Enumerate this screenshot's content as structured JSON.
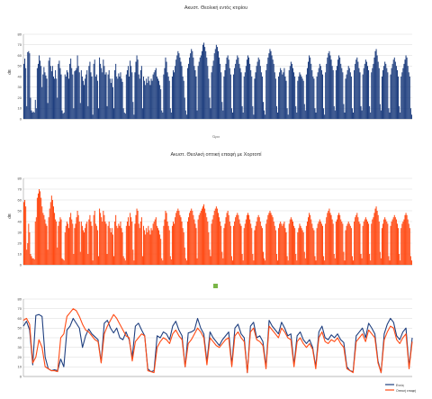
{
  "charts": [
    {
      "title": "Ακυστ. Θεολική εντός κτιρίου",
      "xlabel": "Ώρα",
      "ylabel": "dB",
      "color": "#1f3f7f"
    },
    {
      "title": "Ακυστ. Θεολική οπτική επαφή με Χορτοπί",
      "xlabel": "",
      "ylabel": "dB",
      "color": "#ff4a14"
    },
    {
      "title": "",
      "xlabel": "",
      "ylabel": "",
      "legend": [
        "Εντός",
        "Οπτική επαφή"
      ],
      "colors": [
        "#1f3f7f",
        "#ff4a14"
      ]
    }
  ],
  "chart_data": [
    {
      "type": "bar",
      "title": "Ακυστ. Θεολική εντός κτιρίου",
      "xlabel": "Ώρα",
      "ylabel": "dB",
      "ylim": [
        0,
        80
      ],
      "yticks": [
        0,
        10,
        20,
        30,
        40,
        50,
        60,
        70,
        80
      ],
      "grid": true,
      "color": "#1f3f7f",
      "values": [
        52,
        57,
        48,
        12,
        63,
        64,
        62,
        20,
        8,
        6,
        7,
        6,
        18,
        10,
        48,
        52,
        60,
        55,
        50,
        30,
        42,
        49,
        44,
        41,
        38,
        15,
        55,
        58,
        50,
        45,
        50,
        40,
        38,
        46,
        38,
        20,
        52,
        55,
        48,
        42,
        8,
        5,
        6,
        42,
        40,
        46,
        44,
        38,
        52,
        57,
        48,
        42,
        10,
        45,
        46,
        48,
        60,
        50,
        44,
        15,
        46,
        40,
        36,
        32,
        38,
        42,
        46,
        12,
        50,
        54,
        44,
        40,
        4,
        52,
        56,
        40,
        42,
        36,
        10,
        58,
        52,
        48,
        44,
        56,
        50,
        42,
        44,
        12,
        42,
        46,
        38,
        34,
        38,
        30,
        10,
        46,
        52,
        40,
        38,
        43,
        40,
        44,
        38,
        35,
        10,
        6,
        5,
        42,
        46,
        50,
        40,
        55,
        50,
        44,
        16,
        4,
        44,
        54,
        60,
        56,
        42,
        38,
        46,
        50,
        10,
        40,
        36,
        32,
        38,
        34,
        40,
        36,
        32,
        38,
        36,
        42,
        44,
        46,
        48,
        40,
        38,
        36,
        32,
        28,
        8,
        6,
        42,
        48,
        58,
        54,
        44,
        40,
        36,
        10,
        6,
        40,
        46,
        44,
        50,
        56,
        60,
        64,
        62,
        58,
        54,
        50,
        40,
        36,
        20,
        8,
        4,
        48,
        52,
        58,
        62,
        66,
        64,
        58,
        50,
        46,
        40,
        8,
        50,
        54,
        58,
        60,
        64,
        70,
        72,
        68,
        64,
        58,
        50,
        38,
        20,
        10,
        44,
        50,
        55,
        62,
        66,
        70,
        68,
        64,
        58,
        52,
        44,
        16,
        8,
        40,
        46,
        52,
        58,
        60,
        56,
        48,
        42,
        10,
        6,
        42,
        48,
        52,
        56,
        60,
        58,
        52,
        48,
        44,
        12,
        6,
        40,
        44,
        50,
        56,
        60,
        58,
        52,
        46,
        40,
        12,
        4,
        38,
        44,
        50,
        54,
        58,
        56,
        50,
        44,
        40,
        16,
        8,
        4,
        46,
        52,
        58,
        62,
        66,
        64,
        60,
        56,
        52,
        44,
        38,
        12,
        6,
        40,
        44,
        48,
        46,
        42,
        44,
        48,
        40,
        36,
        10,
        4,
        46,
        50,
        54,
        52,
        48,
        44,
        40,
        12,
        6,
        36,
        40,
        44,
        42,
        40,
        38,
        36,
        14,
        8,
        42,
        48,
        54,
        60,
        58,
        52,
        46,
        40,
        38,
        10,
        6,
        40,
        44,
        48,
        52,
        50,
        46,
        42,
        10,
        4,
        44,
        52,
        58,
        62,
        64,
        60,
        56,
        50,
        46,
        12,
        8,
        46,
        50,
        56,
        60,
        58,
        52,
        48,
        44,
        14,
        6,
        38,
        42,
        46,
        50,
        48,
        44,
        40,
        10,
        6,
        46,
        52,
        56,
        58,
        54,
        48,
        44,
        12,
        8,
        42,
        48,
        52,
        56,
        54,
        50,
        46,
        12,
        6,
        44,
        48,
        52,
        58,
        64,
        66,
        60,
        54,
        48,
        14,
        8,
        40,
        46,
        50,
        54,
        52,
        48,
        44,
        10,
        6,
        42,
        48,
        52,
        56,
        58,
        54,
        50,
        46,
        40,
        12,
        6,
        40,
        44,
        48,
        52,
        56,
        60,
        58,
        50,
        44,
        40,
        10,
        4
      ]
    },
    {
      "type": "bar",
      "title": "Ακυστ. Θεολική οπτική επαφή με Χορτοπί",
      "xlabel": "",
      "ylabel": "dB",
      "ylim": [
        0,
        80
      ],
      "yticks": [
        0,
        10,
        20,
        30,
        40,
        50,
        60,
        70,
        80
      ],
      "grid": true,
      "color": "#ff4a14",
      "values": [
        58,
        60,
        54,
        14,
        20,
        38,
        30,
        10,
        8,
        6,
        6,
        5,
        40,
        44,
        62,
        66,
        70,
        68,
        62,
        54,
        48,
        46,
        42,
        38,
        36,
        14,
        44,
        52,
        58,
        64,
        60,
        54,
        48,
        42,
        40,
        16,
        36,
        40,
        44,
        42,
        6,
        5,
        4,
        30,
        36,
        40,
        38,
        34,
        44,
        48,
        42,
        38,
        10,
        34,
        38,
        44,
        50,
        46,
        40,
        12,
        40,
        36,
        32,
        30,
        34,
        38,
        40,
        10,
        42,
        46,
        40,
        36,
        4,
        46,
        50,
        38,
        36,
        32,
        8,
        52,
        48,
        44,
        40,
        50,
        46,
        40,
        38,
        10,
        36,
        40,
        34,
        30,
        34,
        28,
        8,
        40,
        46,
        36,
        34,
        38,
        36,
        40,
        34,
        30,
        8,
        6,
        4,
        36,
        40,
        44,
        36,
        48,
        44,
        40,
        14,
        4,
        38,
        46,
        52,
        50,
        38,
        34,
        40,
        44,
        8,
        36,
        32,
        28,
        34,
        30,
        36,
        32,
        28,
        34,
        32,
        38,
        40,
        42,
        44,
        36,
        34,
        32,
        28,
        24,
        6,
        4,
        36,
        42,
        50,
        48,
        40,
        36,
        32,
        8,
        5,
        36,
        40,
        38,
        44,
        48,
        50,
        52,
        50,
        46,
        44,
        40,
        34,
        30,
        16,
        6,
        4,
        40,
        44,
        48,
        50,
        52,
        50,
        46,
        42,
        38,
        34,
        6,
        42,
        46,
        48,
        50,
        52,
        54,
        56,
        52,
        48,
        44,
        40,
        30,
        14,
        8,
        38,
        42,
        46,
        50,
        52,
        54,
        52,
        48,
        44,
        40,
        36,
        12,
        6,
        34,
        38,
        44,
        48,
        50,
        46,
        40,
        36,
        8,
        4,
        36,
        40,
        44,
        46,
        48,
        46,
        42,
        38,
        36,
        10,
        4,
        34,
        38,
        42,
        46,
        48,
        46,
        42,
        38,
        34,
        10,
        4,
        32,
        36,
        40,
        44,
        46,
        44,
        40,
        36,
        34,
        12,
        6,
        4,
        38,
        42,
        46,
        48,
        50,
        48,
        46,
        44,
        40,
        36,
        32,
        10,
        4,
        34,
        38,
        40,
        38,
        36,
        38,
        40,
        34,
        30,
        8,
        4,
        38,
        42,
        44,
        42,
        40,
        36,
        34,
        10,
        4,
        30,
        34,
        38,
        36,
        34,
        32,
        30,
        12,
        6,
        36,
        40,
        44,
        48,
        46,
        42,
        38,
        34,
        32,
        8,
        4,
        34,
        38,
        40,
        42,
        40,
        38,
        36,
        8,
        4,
        38,
        44,
        48,
        50,
        52,
        48,
        46,
        42,
        38,
        10,
        6,
        40,
        42,
        46,
        48,
        46,
        42,
        40,
        38,
        12,
        4,
        32,
        36,
        38,
        40,
        38,
        36,
        34,
        8,
        4,
        40,
        44,
        46,
        48,
        44,
        40,
        38,
        10,
        6,
        36,
        40,
        42,
        44,
        42,
        40,
        38,
        10,
        4,
        38,
        42,
        44,
        48,
        52,
        54,
        50,
        46,
        40,
        12,
        6,
        34,
        38,
        42,
        44,
        42,
        40,
        38,
        8,
        4,
        36,
        40,
        42,
        44,
        46,
        44,
        42,
        38,
        34,
        10,
        4,
        34,
        38,
        40,
        42,
        46,
        48,
        46,
        42,
        38,
        34,
        8,
        4
      ]
    },
    {
      "type": "line",
      "title": "",
      "xlabel": "",
      "ylabel": "",
      "ylim": [
        0,
        80
      ],
      "yticks": [
        0,
        10,
        20,
        30,
        40,
        50,
        60,
        70,
        80
      ],
      "grid": true,
      "legend_position": "bottom-right",
      "series": [
        {
          "name": "Εντός",
          "color": "#1f3f7f",
          "values": [
            52,
            57,
            48,
            12,
            63,
            64,
            62,
            20,
            8,
            6,
            7,
            6,
            18,
            10,
            48,
            52,
            60,
            55,
            50,
            30,
            42,
            49,
            44,
            41,
            38,
            15,
            55,
            58,
            50,
            45,
            50,
            40,
            38,
            46,
            38,
            20,
            52,
            55,
            48,
            42,
            8,
            5,
            6,
            42,
            40,
            46,
            44,
            38,
            52,
            57,
            48,
            42,
            10,
            45,
            46,
            48,
            60,
            50,
            44,
            15,
            46,
            40,
            36,
            32,
            38,
            42,
            46,
            12,
            50,
            54,
            44,
            40,
            4,
            52,
            56,
            40,
            42,
            36,
            10,
            58,
            52,
            48,
            44,
            56,
            50,
            42,
            44,
            12,
            42,
            46,
            38,
            34,
            38,
            30,
            10,
            46,
            52,
            40,
            38,
            43,
            40,
            44,
            38,
            35,
            10,
            6,
            5,
            42,
            46,
            50,
            40,
            55,
            50,
            44,
            16,
            4,
            44,
            54,
            60,
            56,
            42,
            38,
            46,
            50,
            10,
            40
          ]
        },
        {
          "name": "Οπτική επαφή",
          "color": "#ff4a14",
          "values": [
            58,
            60,
            54,
            14,
            20,
            38,
            30,
            10,
            8,
            6,
            6,
            5,
            40,
            44,
            62,
            66,
            70,
            68,
            62,
            54,
            48,
            46,
            42,
            38,
            36,
            14,
            44,
            52,
            58,
            64,
            60,
            54,
            48,
            42,
            40,
            16,
            36,
            40,
            44,
            42,
            6,
            5,
            4,
            30,
            36,
            40,
            38,
            34,
            44,
            48,
            42,
            38,
            10,
            34,
            38,
            44,
            50,
            46,
            40,
            12,
            40,
            36,
            32,
            30,
            34,
            38,
            40,
            10,
            42,
            46,
            40,
            36,
            4,
            46,
            50,
            38,
            36,
            32,
            8,
            52,
            48,
            44,
            40,
            50,
            46,
            40,
            38,
            10,
            36,
            40,
            34,
            30,
            34,
            28,
            8,
            40,
            46,
            36,
            34,
            38,
            36,
            40,
            34,
            30,
            8,
            6,
            4,
            36,
            40,
            44,
            36,
            48,
            44,
            40,
            14,
            4,
            38,
            46,
            52,
            50,
            38,
            34,
            40,
            44,
            8,
            36
          ]
        }
      ]
    }
  ]
}
